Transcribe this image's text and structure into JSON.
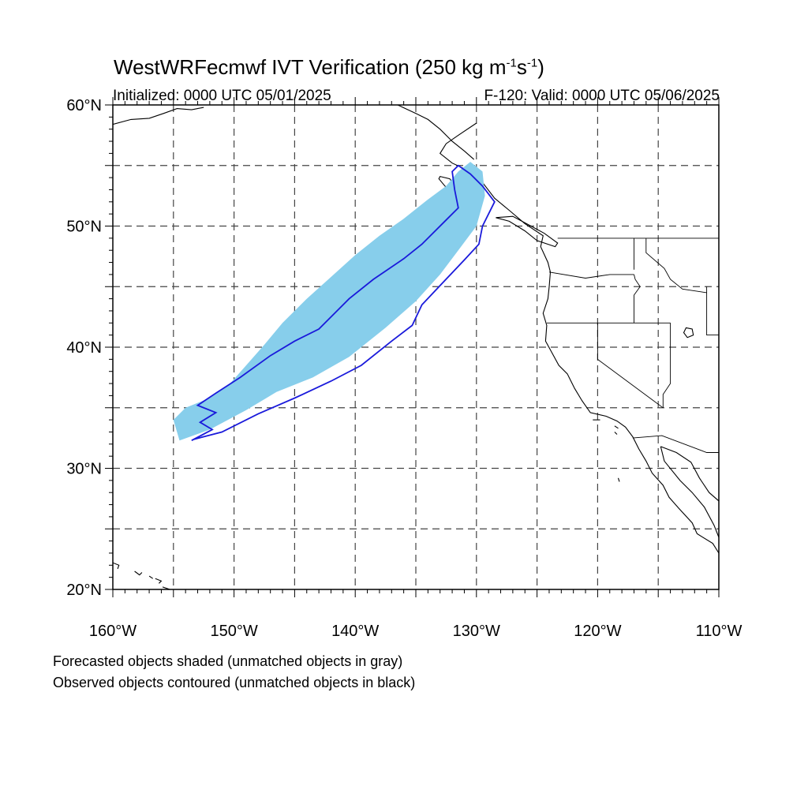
{
  "title": {
    "main": "WestWRFecmwf IVT Verification (250 kg m",
    "sup1": "-1",
    "mid": "s",
    "sup2": "-1",
    "end": ")"
  },
  "subtitle": {
    "initialized": "Initialized: 0000 UTC 05/01/2025",
    "valid": "F-120: Valid: 0000 UTC 05/06/2025"
  },
  "notes": {
    "forecast": "Forecasted objects shaded (unmatched objects in gray)",
    "observed": "Observed objects contoured (unmatched objects in black)"
  },
  "map": {
    "lon_range": [
      -160,
      -110
    ],
    "lat_range": [
      20,
      60
    ],
    "lat_labels": [
      "20°N",
      "30°N",
      "40°N",
      "50°N",
      "60°N"
    ],
    "lon_labels": [
      "160°W",
      "150°W",
      "140°W",
      "130°W",
      "120°W",
      "110°W"
    ],
    "grid_lons": [
      -155,
      -150,
      -145,
      -140,
      -135,
      -130,
      -125,
      -120,
      -115
    ],
    "grid_lats": [
      25,
      30,
      35,
      40,
      45,
      50,
      55
    ],
    "colors": {
      "forecast_fill": "#87ceeb",
      "observed_contour": "#1a1adb",
      "coast": "#000000",
      "grid": "#444444"
    },
    "forecast_object": [
      [
        -154.5,
        32.3
      ],
      [
        -152.0,
        33.2
      ],
      [
        -149.0,
        34.8
      ],
      [
        -146.5,
        36.3
      ],
      [
        -143.5,
        37.5
      ],
      [
        -140.5,
        39.2
      ],
      [
        -137.5,
        41.6
      ],
      [
        -135.0,
        43.8
      ],
      [
        -133.0,
        46.0
      ],
      [
        -131.5,
        48.0
      ],
      [
        -130.0,
        50.0
      ],
      [
        -129.3,
        52.5
      ],
      [
        -129.5,
        54.5
      ],
      [
        -130.5,
        55.3
      ],
      [
        -131.5,
        54.5
      ],
      [
        -132.5,
        53.3
      ],
      [
        -134.0,
        52.2
      ],
      [
        -136.0,
        50.6
      ],
      [
        -138.0,
        49.2
      ],
      [
        -140.0,
        47.6
      ],
      [
        -142.0,
        45.8
      ],
      [
        -144.0,
        44.0
      ],
      [
        -146.0,
        42.0
      ],
      [
        -147.5,
        40.2
      ],
      [
        -149.0,
        38.5
      ],
      [
        -150.5,
        36.8
      ],
      [
        -152.5,
        35.6
      ],
      [
        -154.0,
        35.0
      ],
      [
        -155.0,
        34.0
      ]
    ],
    "observed_object": [
      [
        -153.3,
        32.4
      ],
      [
        -151.0,
        33.0
      ],
      [
        -148.0,
        34.5
      ],
      [
        -145.0,
        35.8
      ],
      [
        -142.0,
        37.2
      ],
      [
        -139.5,
        38.5
      ],
      [
        -137.0,
        40.5
      ],
      [
        -135.3,
        41.8
      ],
      [
        -134.5,
        43.5
      ],
      [
        -132.8,
        45.3
      ],
      [
        -131.0,
        47.2
      ],
      [
        -129.8,
        48.5
      ],
      [
        -129.5,
        50.0
      ],
      [
        -128.5,
        52.0
      ],
      [
        -129.5,
        53.3
      ],
      [
        -130.5,
        54.3
      ],
      [
        -131.5,
        55.0
      ],
      [
        -132.0,
        54.5
      ],
      [
        -131.8,
        53.0
      ],
      [
        -131.5,
        51.5
      ],
      [
        -132.5,
        50.5
      ],
      [
        -134.5,
        48.5
      ],
      [
        -136.0,
        47.3
      ],
      [
        -138.5,
        45.6
      ],
      [
        -140.5,
        44.0
      ],
      [
        -143.0,
        41.5
      ],
      [
        -145.0,
        40.5
      ],
      [
        -147.0,
        39.3
      ],
      [
        -149.5,
        37.5
      ],
      [
        -151.5,
        36.2
      ],
      [
        -153.0,
        35.2
      ],
      [
        -151.5,
        34.6
      ],
      [
        -152.8,
        33.8
      ],
      [
        -151.8,
        33.2
      ],
      [
        -153.5,
        32.3
      ]
    ],
    "coastline": [
      [
        -130.0,
        58.5
      ],
      [
        -131.5,
        57.5
      ],
      [
        -132.5,
        56.8
      ],
      [
        -133.0,
        56.0
      ],
      [
        -132.0,
        55.2
      ],
      [
        -130.5,
        54.5
      ],
      [
        -129.5,
        53.6
      ],
      [
        -128.5,
        52.3
      ],
      [
        -127.3,
        51.3
      ],
      [
        -126.0,
        50.2
      ],
      [
        -124.5,
        49.2
      ],
      [
        -124.7,
        48.3
      ],
      [
        -124.1,
        47.0
      ],
      [
        -123.9,
        46.2
      ],
      [
        -124.0,
        45.0
      ],
      [
        -124.1,
        44.0
      ],
      [
        -124.5,
        42.8
      ],
      [
        -124.2,
        41.8
      ],
      [
        -124.3,
        40.5
      ],
      [
        -123.8,
        39.6
      ],
      [
        -123.2,
        38.5
      ],
      [
        -122.5,
        37.8
      ],
      [
        -122.2,
        37.2
      ],
      [
        -121.9,
        36.6
      ],
      [
        -121.3,
        35.6
      ],
      [
        -120.6,
        34.6
      ],
      [
        -119.3,
        34.3
      ],
      [
        -118.4,
        33.9
      ],
      [
        -117.7,
        33.4
      ],
      [
        -117.1,
        32.6
      ],
      [
        -116.6,
        31.6
      ],
      [
        -116.0,
        30.6
      ],
      [
        -115.5,
        29.6
      ],
      [
        -114.6,
        28.6
      ],
      [
        -114.1,
        27.6
      ],
      [
        -113.3,
        26.7
      ],
      [
        -112.2,
        25.5
      ],
      [
        -111.8,
        24.6
      ],
      [
        -110.5,
        23.8
      ],
      [
        -110.0,
        23.0
      ]
    ],
    "gulf_coast": [
      [
        -114.8,
        31.8
      ],
      [
        -114.5,
        30.6
      ],
      [
        -113.2,
        29.0
      ],
      [
        -112.2,
        28.0
      ],
      [
        -111.2,
        26.8
      ],
      [
        -110.4,
        25.3
      ],
      [
        -110.0,
        24.3
      ]
    ],
    "mainland_coast": [
      [
        -114.8,
        31.8
      ],
      [
        -113.5,
        31.3
      ],
      [
        -112.3,
        30.5
      ],
      [
        -111.6,
        29.2
      ],
      [
        -110.8,
        28.0
      ],
      [
        -110.0,
        27.3
      ]
    ],
    "alaska_coast": [
      [
        -160.0,
        58.4
      ],
      [
        -158.5,
        58.8
      ],
      [
        -157.0,
        58.9
      ],
      [
        -155.8,
        59.3
      ],
      [
        -154.7,
        59.7
      ],
      [
        -153.5,
        59.6
      ],
      [
        -152.5,
        59.8
      ]
    ],
    "se_alaska_coast": [
      [
        -136.5,
        60.0
      ],
      [
        -135.0,
        59.3
      ],
      [
        -134.0,
        58.8
      ],
      [
        -133.0,
        58.0
      ],
      [
        -132.0,
        57.0
      ],
      [
        -131.0,
        56.2
      ],
      [
        -130.2,
        55.5
      ]
    ],
    "vancouver_island": [
      [
        -128.4,
        50.7
      ],
      [
        -127.3,
        50.4
      ],
      [
        -126.0,
        49.6
      ],
      [
        -125.0,
        48.8
      ],
      [
        -123.5,
        48.3
      ],
      [
        -123.3,
        48.6
      ],
      [
        -124.4,
        49.4
      ],
      [
        -125.5,
        50.0
      ],
      [
        -127.0,
        50.8
      ],
      [
        -128.4,
        50.7
      ]
    ],
    "haida_gwaii": [
      [
        -133.0,
        54.1
      ],
      [
        -132.2,
        53.9
      ],
      [
        -131.7,
        53.2
      ],
      [
        -131.6,
        52.3
      ],
      [
        -131.2,
        52.0
      ],
      [
        -132.0,
        52.7
      ],
      [
        -132.6,
        53.3
      ],
      [
        -133.1,
        53.9
      ],
      [
        -133.0,
        54.1
      ]
    ],
    "borders": [
      [
        [
          -123.3,
          49.0
        ],
        [
          -110.0,
          49.0
        ]
      ],
      [
        [
          -124.2,
          42.0
        ],
        [
          -120.0,
          42.0
        ],
        [
          -114.0,
          42.0
        ]
      ],
      [
        [
          -120.0,
          42.0
        ],
        [
          -120.0,
          39.0
        ],
        [
          -114.6,
          35.0
        ]
      ],
      [
        [
          -117.1,
          32.5
        ],
        [
          -114.7,
          32.7
        ],
        [
          -111.0,
          31.3
        ],
        [
          -110.0,
          31.3
        ]
      ],
      [
        [
          -117.0,
          46.0
        ],
        [
          -116.9,
          45.6
        ],
        [
          -116.5,
          45.0
        ],
        [
          -117.0,
          44.3
        ],
        [
          -117.0,
          42.0
        ]
      ],
      [
        [
          -124.0,
          46.2
        ],
        [
          -121.0,
          45.7
        ],
        [
          -119.0,
          46.0
        ],
        [
          -117.0,
          46.0
        ]
      ],
      [
        [
          -117.0,
          49.0
        ],
        [
          -117.0,
          46.4
        ]
      ],
      [
        [
          -114.0,
          42.0
        ],
        [
          -114.0,
          37.0
        ],
        [
          -114.6,
          36.1
        ],
        [
          -114.6,
          35.0
        ]
      ],
      [
        [
          -111.0,
          45.0
        ],
        [
          -111.0,
          41.0
        ],
        [
          -110.0,
          41.0
        ]
      ],
      [
        [
          -116.0,
          49.0
        ],
        [
          -116.0,
          47.8
        ],
        [
          -114.5,
          46.5
        ],
        [
          -114.0,
          45.6
        ],
        [
          -113.0,
          44.8
        ],
        [
          -111.0,
          44.5
        ]
      ]
    ],
    "hawaii": [
      [
        [
          -160.0,
          22.2
        ],
        [
          -159.5,
          22.0
        ],
        [
          -159.6,
          21.7
        ]
      ],
      [
        [
          -158.2,
          21.5
        ],
        [
          -157.8,
          21.2
        ],
        [
          -157.6,
          21.4
        ]
      ],
      [
        [
          -157.0,
          21.1
        ],
        [
          -156.7,
          20.9
        ]
      ],
      [
        [
          -156.5,
          20.9
        ],
        [
          -156.0,
          20.7
        ],
        [
          -156.2,
          20.5
        ]
      ],
      [
        [
          -155.9,
          20.2
        ],
        [
          -155.3,
          20.0
        ],
        [
          -155.0,
          19.6
        ]
      ]
    ],
    "great_salt_lake": [
      [
        -112.7,
        41.6
      ],
      [
        -112.2,
        41.5
      ],
      [
        -112.1,
        41.0
      ],
      [
        -112.6,
        40.8
      ],
      [
        -112.9,
        41.2
      ],
      [
        -112.7,
        41.6
      ]
    ],
    "channel_islands": [
      [
        [
          -120.4,
          34.0
        ],
        [
          -119.8,
          34.0
        ]
      ],
      [
        [
          -118.6,
          33.5
        ],
        [
          -118.3,
          33.3
        ]
      ],
      [
        [
          -118.6,
          33.0
        ],
        [
          -118.4,
          32.8
        ]
      ]
    ],
    "guadalupe_island": [
      [
        -118.3,
        29.2
      ],
      [
        -118.2,
        28.9
      ]
    ]
  }
}
